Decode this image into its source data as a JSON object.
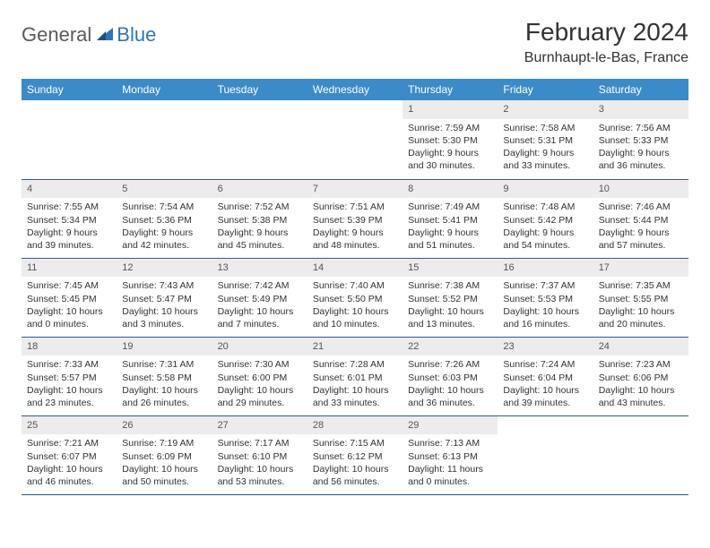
{
  "logo": {
    "text_general": "General",
    "text_blue": "Blue"
  },
  "header": {
    "month_title": "February 2024",
    "location": "Burnhaupt-le-Bas, France"
  },
  "colors": {
    "header_bg": "#3b8bc9",
    "header_text": "#ffffff",
    "border": "#2e5c8a",
    "daynum_bg": "#ececec",
    "text": "#333333",
    "logo_general": "#5a5a5a",
    "logo_blue": "#2e75b6"
  },
  "day_headers": [
    "Sunday",
    "Monday",
    "Tuesday",
    "Wednesday",
    "Thursday",
    "Friday",
    "Saturday"
  ],
  "weeks": [
    [
      null,
      null,
      null,
      null,
      {
        "n": "1",
        "sunrise": "Sunrise: 7:59 AM",
        "sunset": "Sunset: 5:30 PM",
        "daylight": "Daylight: 9 hours and 30 minutes."
      },
      {
        "n": "2",
        "sunrise": "Sunrise: 7:58 AM",
        "sunset": "Sunset: 5:31 PM",
        "daylight": "Daylight: 9 hours and 33 minutes."
      },
      {
        "n": "3",
        "sunrise": "Sunrise: 7:56 AM",
        "sunset": "Sunset: 5:33 PM",
        "daylight": "Daylight: 9 hours and 36 minutes."
      }
    ],
    [
      {
        "n": "4",
        "sunrise": "Sunrise: 7:55 AM",
        "sunset": "Sunset: 5:34 PM",
        "daylight": "Daylight: 9 hours and 39 minutes."
      },
      {
        "n": "5",
        "sunrise": "Sunrise: 7:54 AM",
        "sunset": "Sunset: 5:36 PM",
        "daylight": "Daylight: 9 hours and 42 minutes."
      },
      {
        "n": "6",
        "sunrise": "Sunrise: 7:52 AM",
        "sunset": "Sunset: 5:38 PM",
        "daylight": "Daylight: 9 hours and 45 minutes."
      },
      {
        "n": "7",
        "sunrise": "Sunrise: 7:51 AM",
        "sunset": "Sunset: 5:39 PM",
        "daylight": "Daylight: 9 hours and 48 minutes."
      },
      {
        "n": "8",
        "sunrise": "Sunrise: 7:49 AM",
        "sunset": "Sunset: 5:41 PM",
        "daylight": "Daylight: 9 hours and 51 minutes."
      },
      {
        "n": "9",
        "sunrise": "Sunrise: 7:48 AM",
        "sunset": "Sunset: 5:42 PM",
        "daylight": "Daylight: 9 hours and 54 minutes."
      },
      {
        "n": "10",
        "sunrise": "Sunrise: 7:46 AM",
        "sunset": "Sunset: 5:44 PM",
        "daylight": "Daylight: 9 hours and 57 minutes."
      }
    ],
    [
      {
        "n": "11",
        "sunrise": "Sunrise: 7:45 AM",
        "sunset": "Sunset: 5:45 PM",
        "daylight": "Daylight: 10 hours and 0 minutes."
      },
      {
        "n": "12",
        "sunrise": "Sunrise: 7:43 AM",
        "sunset": "Sunset: 5:47 PM",
        "daylight": "Daylight: 10 hours and 3 minutes."
      },
      {
        "n": "13",
        "sunrise": "Sunrise: 7:42 AM",
        "sunset": "Sunset: 5:49 PM",
        "daylight": "Daylight: 10 hours and 7 minutes."
      },
      {
        "n": "14",
        "sunrise": "Sunrise: 7:40 AM",
        "sunset": "Sunset: 5:50 PM",
        "daylight": "Daylight: 10 hours and 10 minutes."
      },
      {
        "n": "15",
        "sunrise": "Sunrise: 7:38 AM",
        "sunset": "Sunset: 5:52 PM",
        "daylight": "Daylight: 10 hours and 13 minutes."
      },
      {
        "n": "16",
        "sunrise": "Sunrise: 7:37 AM",
        "sunset": "Sunset: 5:53 PM",
        "daylight": "Daylight: 10 hours and 16 minutes."
      },
      {
        "n": "17",
        "sunrise": "Sunrise: 7:35 AM",
        "sunset": "Sunset: 5:55 PM",
        "daylight": "Daylight: 10 hours and 20 minutes."
      }
    ],
    [
      {
        "n": "18",
        "sunrise": "Sunrise: 7:33 AM",
        "sunset": "Sunset: 5:57 PM",
        "daylight": "Daylight: 10 hours and 23 minutes."
      },
      {
        "n": "19",
        "sunrise": "Sunrise: 7:31 AM",
        "sunset": "Sunset: 5:58 PM",
        "daylight": "Daylight: 10 hours and 26 minutes."
      },
      {
        "n": "20",
        "sunrise": "Sunrise: 7:30 AM",
        "sunset": "Sunset: 6:00 PM",
        "daylight": "Daylight: 10 hours and 29 minutes."
      },
      {
        "n": "21",
        "sunrise": "Sunrise: 7:28 AM",
        "sunset": "Sunset: 6:01 PM",
        "daylight": "Daylight: 10 hours and 33 minutes."
      },
      {
        "n": "22",
        "sunrise": "Sunrise: 7:26 AM",
        "sunset": "Sunset: 6:03 PM",
        "daylight": "Daylight: 10 hours and 36 minutes."
      },
      {
        "n": "23",
        "sunrise": "Sunrise: 7:24 AM",
        "sunset": "Sunset: 6:04 PM",
        "daylight": "Daylight: 10 hours and 39 minutes."
      },
      {
        "n": "24",
        "sunrise": "Sunrise: 7:23 AM",
        "sunset": "Sunset: 6:06 PM",
        "daylight": "Daylight: 10 hours and 43 minutes."
      }
    ],
    [
      {
        "n": "25",
        "sunrise": "Sunrise: 7:21 AM",
        "sunset": "Sunset: 6:07 PM",
        "daylight": "Daylight: 10 hours and 46 minutes."
      },
      {
        "n": "26",
        "sunrise": "Sunrise: 7:19 AM",
        "sunset": "Sunset: 6:09 PM",
        "daylight": "Daylight: 10 hours and 50 minutes."
      },
      {
        "n": "27",
        "sunrise": "Sunrise: 7:17 AM",
        "sunset": "Sunset: 6:10 PM",
        "daylight": "Daylight: 10 hours and 53 minutes."
      },
      {
        "n": "28",
        "sunrise": "Sunrise: 7:15 AM",
        "sunset": "Sunset: 6:12 PM",
        "daylight": "Daylight: 10 hours and 56 minutes."
      },
      {
        "n": "29",
        "sunrise": "Sunrise: 7:13 AM",
        "sunset": "Sunset: 6:13 PM",
        "daylight": "Daylight: 11 hours and 0 minutes."
      },
      null,
      null
    ]
  ]
}
